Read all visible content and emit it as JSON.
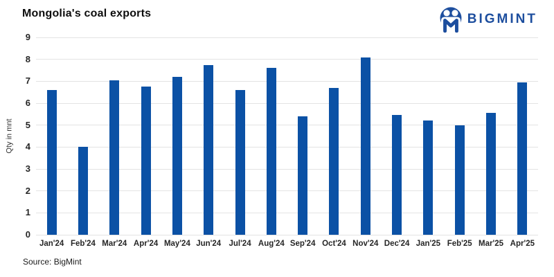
{
  "header": {
    "title": "Mongolia's coal exports",
    "logo": {
      "brand": "BIGMINT",
      "color": "#1d4e9e"
    }
  },
  "chart_data": {
    "type": "bar",
    "title": "Mongolia's coal exports",
    "categories": [
      "Jan'24",
      "Feb'24",
      "Mar'24",
      "Apr'24",
      "May'24",
      "Jun'24",
      "Jul'24",
      "Aug'24",
      "Sep'24",
      "Oct'24",
      "Nov'24",
      "Dec'24",
      "Jan'25",
      "Feb'25",
      "Mar'25",
      "Apr'25"
    ],
    "values": [
      6.6,
      4.0,
      7.05,
      6.75,
      7.2,
      7.75,
      6.6,
      7.6,
      5.4,
      6.7,
      8.1,
      5.45,
      5.2,
      5.0,
      5.55,
      6.95
    ],
    "xlabel": "",
    "ylabel": "Qty in mnt",
    "ylim": [
      0,
      9
    ],
    "yticks": [
      0,
      1,
      2,
      3,
      4,
      5,
      6,
      7,
      8,
      9
    ],
    "grid": true,
    "legend": "none",
    "bar_color": "#0b51a5",
    "gridline_color": "#e3e3e3"
  },
  "footer": {
    "source": "Source: BigMint"
  }
}
